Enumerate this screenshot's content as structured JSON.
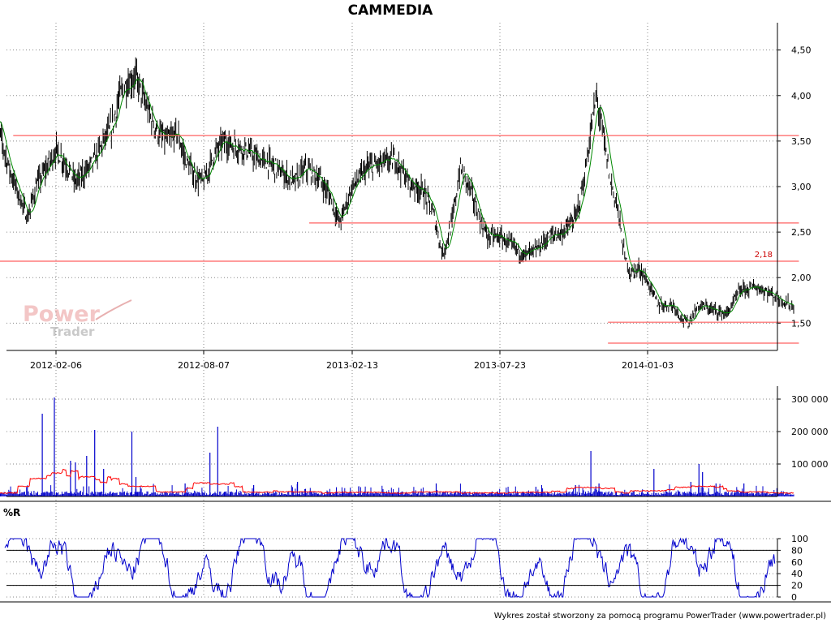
{
  "chart_data": [
    {
      "type": "candlestick",
      "title": "CAMMEDIA",
      "ylim": [
        1.2,
        4.8
      ],
      "y_ticks": [
        "4,50",
        "4,00",
        "3,50",
        "3,00",
        "2,50",
        "2,00",
        "1,50"
      ],
      "x_tick_labels": [
        "2012-02-06",
        "2012-08-07",
        "2013-02-13",
        "2013-07-23",
        "2014-01-03"
      ],
      "grid": true,
      "moving_average_color": "#008800",
      "price_color": "#000000",
      "price_path": [
        [
          "2011-11-21",
          3.85
        ],
        [
          "2011-12-01",
          3.5
        ],
        [
          "2011-12-10",
          3.2
        ],
        [
          "2011-12-20",
          2.95
        ],
        [
          "2012-01-02",
          2.65
        ],
        [
          "2012-01-12",
          3.0
        ],
        [
          "2012-01-25",
          3.2
        ],
        [
          "2012-02-06",
          3.4
        ],
        [
          "2012-02-18",
          3.25
        ],
        [
          "2012-03-01",
          3.05
        ],
        [
          "2012-03-12",
          3.15
        ],
        [
          "2012-03-25",
          3.3
        ],
        [
          "2012-04-05",
          3.5
        ],
        [
          "2012-04-15",
          3.65
        ],
        [
          "2012-04-25",
          4.0
        ],
        [
          "2012-05-05",
          4.15
        ],
        [
          "2012-05-15",
          4.2
        ],
        [
          "2012-05-25",
          3.95
        ],
        [
          "2012-06-05",
          3.7
        ],
        [
          "2012-06-15",
          3.55
        ],
        [
          "2012-06-25",
          3.5
        ],
        [
          "2012-07-05",
          3.6
        ],
        [
          "2012-07-15",
          3.3
        ],
        [
          "2012-07-28",
          3.1
        ],
        [
          "2012-08-07",
          3.05
        ],
        [
          "2012-08-20",
          3.35
        ],
        [
          "2012-09-01",
          3.5
        ],
        [
          "2012-09-15",
          3.45
        ],
        [
          "2012-10-01",
          3.4
        ],
        [
          "2012-10-15",
          3.3
        ],
        [
          "2012-11-01",
          3.25
        ],
        [
          "2012-11-15",
          3.15
        ],
        [
          "2012-12-01",
          3.05
        ],
        [
          "2012-12-15",
          3.2
        ],
        [
          "2013-01-01",
          3.1
        ],
        [
          "2013-01-15",
          2.9
        ],
        [
          "2013-01-28",
          2.6
        ],
        [
          "2013-02-13",
          3.0
        ],
        [
          "2013-03-01",
          3.2
        ],
        [
          "2013-03-15",
          3.25
        ],
        [
          "2013-04-01",
          3.3
        ],
        [
          "2013-04-15",
          3.05
        ],
        [
          "2013-05-01",
          2.95
        ],
        [
          "2013-05-12",
          2.7
        ],
        [
          "2013-05-22",
          2.25
        ],
        [
          "2013-06-01",
          2.6
        ],
        [
          "2013-06-10",
          3.2
        ],
        [
          "2013-06-20",
          3.0
        ],
        [
          "2013-07-01",
          2.65
        ],
        [
          "2013-07-10",
          2.45
        ],
        [
          "2013-07-23",
          2.45
        ],
        [
          "2013-08-05",
          2.35
        ],
        [
          "2013-08-20",
          2.25
        ],
        [
          "2013-09-01",
          2.3
        ],
        [
          "2013-09-15",
          2.45
        ],
        [
          "2013-10-01",
          2.5
        ],
        [
          "2013-10-15",
          2.65
        ],
        [
          "2013-10-25",
          3.1
        ],
        [
          "2013-11-01",
          3.6
        ],
        [
          "2013-11-07",
          4.0
        ],
        [
          "2013-11-15",
          3.55
        ],
        [
          "2013-11-22",
          3.1
        ],
        [
          "2013-12-01",
          2.75
        ],
        [
          "2013-12-08",
          2.25
        ],
        [
          "2013-12-15",
          2.05
        ],
        [
          "2013-12-25",
          2.1
        ],
        [
          "2014-01-03",
          1.95
        ],
        [
          "2014-01-15",
          1.7
        ],
        [
          "2014-02-01",
          1.7
        ],
        [
          "2014-02-10",
          1.55
        ],
        [
          "2014-02-17",
          1.5
        ],
        [
          "2014-03-01",
          1.7
        ],
        [
          "2014-03-15",
          1.65
        ],
        [
          "2014-04-01",
          1.6
        ],
        [
          "2014-04-15",
          1.85
        ],
        [
          "2014-05-01",
          1.9
        ],
        [
          "2014-05-15",
          1.85
        ],
        [
          "2014-06-01",
          1.75
        ],
        [
          "2014-06-15",
          1.68
        ]
      ],
      "support_resistance_lines": [
        {
          "value": 3.56,
          "from": "2011-12-15",
          "to": "2014-06-20"
        },
        {
          "value": 2.6,
          "from": "2012-12-20",
          "to": "2014-06-20"
        },
        {
          "value": 2.18,
          "from": "2011-11-21",
          "to": "2014-06-20",
          "label": "2,18"
        },
        {
          "value": 1.51,
          "from": "2013-11-20",
          "to": "2014-06-20"
        },
        {
          "value": 1.28,
          "from": "2013-11-20",
          "to": "2014-06-20"
        }
      ],
      "line_color": "#ff6060"
    },
    {
      "type": "bar",
      "ylim": [
        0,
        340000
      ],
      "y_ticks": [
        "300 000",
        "200 000",
        "100 000"
      ],
      "bar_color": "#0000cc",
      "average_line_color": "#ff0000",
      "spikes": [
        [
          "2012-01-20",
          255000
        ],
        [
          "2012-02-04",
          305000
        ],
        [
          "2012-02-24",
          110000
        ],
        [
          "2012-03-01",
          105000
        ],
        [
          "2012-03-15",
          125000
        ],
        [
          "2012-03-25",
          205000
        ],
        [
          "2012-04-05",
          85000
        ],
        [
          "2012-05-10",
          200000
        ],
        [
          "2012-05-15",
          60000
        ],
        [
          "2012-07-15",
          40000
        ],
        [
          "2012-08-15",
          135000
        ],
        [
          "2012-08-25",
          215000
        ],
        [
          "2012-10-10",
          35000
        ],
        [
          "2012-12-05",
          45000
        ],
        [
          "2013-02-20",
          30000
        ],
        [
          "2013-05-15",
          40000
        ],
        [
          "2013-09-01",
          30000
        ],
        [
          "2013-10-15",
          35000
        ],
        [
          "2013-11-01",
          140000
        ],
        [
          "2013-11-10",
          40000
        ],
        [
          "2014-01-10",
          85000
        ],
        [
          "2014-02-20",
          45000
        ],
        [
          "2014-03-01",
          100000
        ],
        [
          "2014-03-05",
          75000
        ],
        [
          "2014-03-20",
          40000
        ],
        [
          "2014-04-20",
          40000
        ]
      ]
    },
    {
      "type": "line",
      "title": "%R",
      "ylim": [
        0,
        100
      ],
      "y_ticks": [
        "100",
        "80",
        "60",
        "40",
        "20",
        "0"
      ],
      "level_lines": [
        80,
        20
      ],
      "line_color": "#0000cc"
    }
  ],
  "footer": "Wykres został stworzony za pomocą programu PowerTrader (www.powertrader.pl)",
  "logo": {
    "line1": "Power",
    "line2": "Trader"
  }
}
